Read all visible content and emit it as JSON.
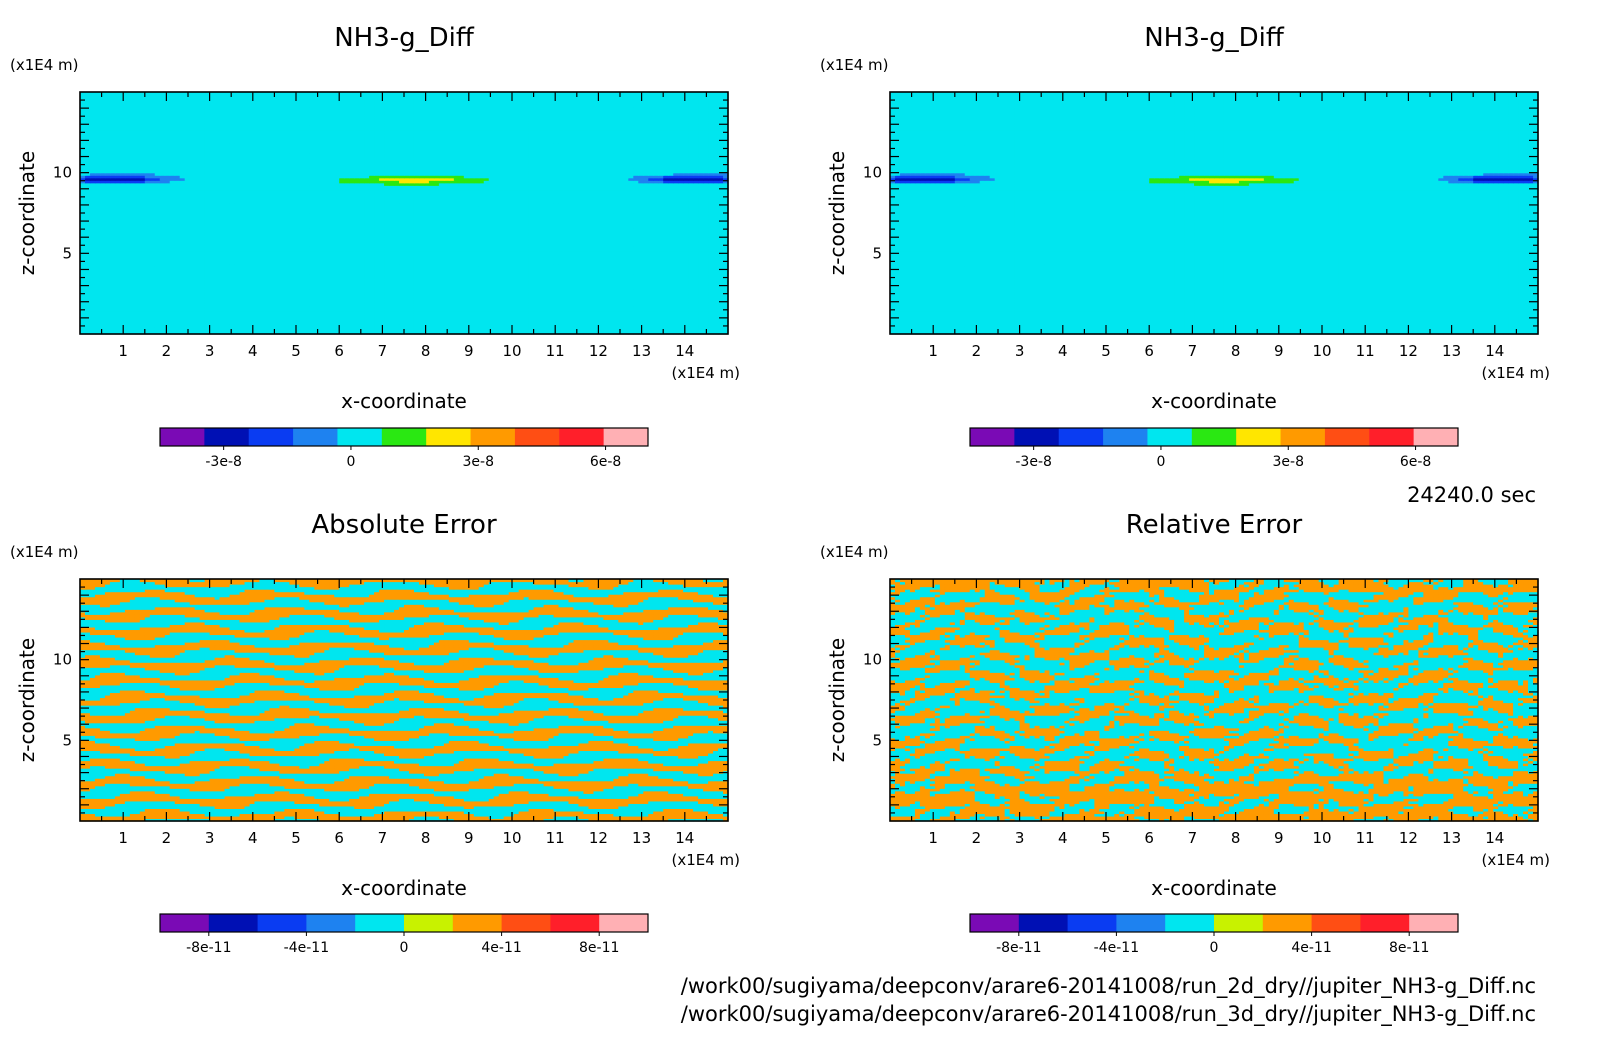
{
  "chart_data": [
    {
      "type": "heatmap",
      "title": "NH3-g_Diff",
      "xlabel": "x-coordinate",
      "ylabel": "z-coordinate",
      "x_unit": "(x1E4 m)",
      "y_unit": "(x1E4 m)",
      "x_ticks": [
        "1",
        "2",
        "3",
        "4",
        "5",
        "6",
        "7",
        "8",
        "9",
        "10",
        "11",
        "12",
        "13",
        "14"
      ],
      "y_ticks": [
        "5",
        "10"
      ],
      "xlim": [
        0,
        15
      ],
      "ylim": [
        0,
        15
      ],
      "colorbar": {
        "colors": [
          "#7a0ab5",
          "#0010b4",
          "#0a3cf2",
          "#1e82f0",
          "#00e6ef",
          "#2ae812",
          "#ffe600",
          "#ff9a00",
          "#ff4e14",
          "#ff1f2a",
          "#ffb0b4"
        ],
        "tick_labels": [
          "-3e-8",
          "0",
          "3e-8",
          "6e-8"
        ],
        "tick_values": [
          -3e-08,
          0,
          3e-08,
          6e-08
        ],
        "range": [
          -4.5e-08,
          7e-08
        ]
      },
      "pattern": "bands"
    },
    {
      "type": "heatmap",
      "title": "NH3-g_Diff",
      "xlabel": "x-coordinate",
      "ylabel": "z-coordinate",
      "x_unit": "(x1E4 m)",
      "y_unit": "(x1E4 m)",
      "x_ticks": [
        "1",
        "2",
        "3",
        "4",
        "5",
        "6",
        "7",
        "8",
        "9",
        "10",
        "11",
        "12",
        "13",
        "14"
      ],
      "y_ticks": [
        "5",
        "10"
      ],
      "xlim": [
        0,
        15
      ],
      "ylim": [
        0,
        15
      ],
      "colorbar": {
        "colors": [
          "#7a0ab5",
          "#0010b4",
          "#0a3cf2",
          "#1e82f0",
          "#00e6ef",
          "#2ae812",
          "#ffe600",
          "#ff9a00",
          "#ff4e14",
          "#ff1f2a",
          "#ffb0b4"
        ],
        "tick_labels": [
          "-3e-8",
          "0",
          "3e-8",
          "6e-8"
        ],
        "tick_values": [
          -3e-08,
          0,
          3e-08,
          6e-08
        ],
        "range": [
          -4.5e-08,
          7e-08
        ]
      },
      "pattern": "bands"
    },
    {
      "type": "heatmap",
      "title": "Absolute Error",
      "xlabel": "x-coordinate",
      "ylabel": "z-coordinate",
      "x_unit": "(x1E4 m)",
      "y_unit": "(x1E4 m)",
      "x_ticks": [
        "1",
        "2",
        "3",
        "4",
        "5",
        "6",
        "7",
        "8",
        "9",
        "10",
        "11",
        "12",
        "13",
        "14"
      ],
      "y_ticks": [
        "5",
        "10"
      ],
      "xlim": [
        0,
        15
      ],
      "ylim": [
        0,
        15
      ],
      "colorbar": {
        "colors": [
          "#7a0ab5",
          "#0010b4",
          "#0a3cf2",
          "#1e82f0",
          "#00e6ef",
          "#c8f200",
          "#ff9a00",
          "#ff4e14",
          "#ff1f2a",
          "#ffb0b4"
        ],
        "tick_labels": [
          "-8e-11",
          "-4e-11",
          "0",
          "4e-11",
          "8e-11"
        ],
        "tick_values": [
          -8e-11,
          -4e-11,
          0,
          4e-11,
          8e-11
        ],
        "range": [
          -1e-10,
          1e-10
        ]
      },
      "pattern": "noise-abs"
    },
    {
      "type": "heatmap",
      "title": "Relative Error",
      "xlabel": "x-coordinate",
      "ylabel": "z-coordinate",
      "x_unit": "(x1E4 m)",
      "y_unit": "(x1E4 m)",
      "x_ticks": [
        "1",
        "2",
        "3",
        "4",
        "5",
        "6",
        "7",
        "8",
        "9",
        "10",
        "11",
        "12",
        "13",
        "14"
      ],
      "y_ticks": [
        "5",
        "10"
      ],
      "xlim": [
        0,
        15
      ],
      "ylim": [
        0,
        15
      ],
      "colorbar": {
        "colors": [
          "#7a0ab5",
          "#0010b4",
          "#0a3cf2",
          "#1e82f0",
          "#00e6ef",
          "#c8f200",
          "#ff9a00",
          "#ff4e14",
          "#ff1f2a",
          "#ffb0b4"
        ],
        "tick_labels": [
          "-8e-11",
          "-4e-11",
          "0",
          "4e-11",
          "8e-11"
        ],
        "tick_values": [
          -8e-11,
          -4e-11,
          0,
          4e-11,
          8e-11
        ],
        "range": [
          -1e-10,
          1e-10
        ]
      },
      "pattern": "noise-rel"
    }
  ],
  "time_label": "24240.0 sec",
  "file_paths": [
    "/work00/sugiyama/deepconv/arare6-20141008/run_2d_dry//jupiter_NH3-g_Diff.nc",
    "/work00/sugiyama/deepconv/arare6-20141008/run_3d_dry//jupiter_NH3-g_Diff.nc"
  ]
}
